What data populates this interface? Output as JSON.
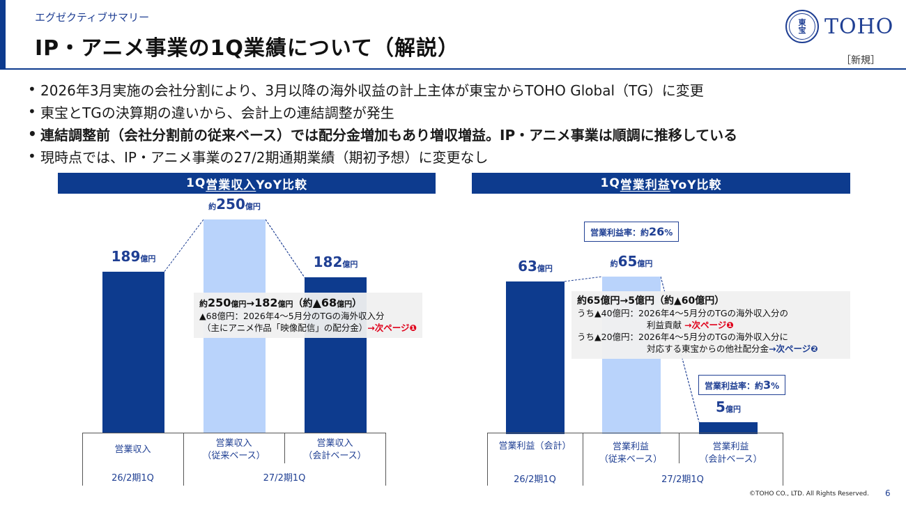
{
  "header": {
    "kicker": "エグゼクティブサマリー",
    "title": "IP・アニメ事業の1Q業績について（解説）",
    "logo_mark_top": "東",
    "logo_mark_bottom": "宝",
    "logo_text": "TOHO",
    "tag": "［新規］"
  },
  "bullets": [
    {
      "text": "2026年3月実施の会社分割により、3月以降の海外収益の計上主体が東宝からTOHO Global（TG）に変更",
      "bold": false
    },
    {
      "text": "東宝とTGの決算期の違いから、会計上の連結調整が発生",
      "bold": false
    },
    {
      "text": "連結調整前（会社分割前の従来ベース）では配分金増加もあり増収増益。IP・アニメ事業は順調に推移している",
      "bold": true
    },
    {
      "text": "現時点では、IP・アニメ事業の27/2期通期業績（期初予想）に変更なし",
      "bold": false
    }
  ],
  "colors": {
    "navy": "#0d3b8e",
    "light": "#b9d3fb",
    "red": "#e0001a"
  },
  "chart_data": [
    {
      "type": "bar",
      "title_pre": "1Q",
      "title_underlined": "営業収入",
      "title_post": "YoY比較",
      "categories": [
        "営業収入",
        "営業収入（従来ベース）",
        "営業収入（会計ベース）"
      ],
      "category_lines": [
        [
          "営業収入"
        ],
        [
          "営業収入",
          "（従来ベース）"
        ],
        [
          "営業収入",
          "（会計ベース）"
        ]
      ],
      "periods": [
        "26/2期1Q",
        "27/2期1Q"
      ],
      "values": [
        189,
        250,
        182
      ],
      "value_prefix": [
        "",
        "約",
        ""
      ],
      "unit": "億円",
      "ylim": [
        0,
        250
      ],
      "bar_colors": [
        "#0d3b8e",
        "#b9d3fb",
        "#0d3b8e"
      ],
      "note": {
        "head_prefix1": "約",
        "head_v1": "250",
        "head_u1": "億円",
        "head_arrow": "→",
        "head_v2": "182",
        "head_u2": "億円",
        "head_paren_open": "（約",
        "head_v3": "▲68",
        "head_u3": "億円",
        "head_paren_close": "）",
        "line1": "▲68億円：2026年4～5月分のTGの海外収入分",
        "line2": "（主にアニメ作品「映像配信」の配分金）",
        "link": "→次ページ❶"
      }
    },
    {
      "type": "bar",
      "title_pre": "1Q",
      "title_underlined": "営業利益",
      "title_post": "YoY比較",
      "categories": [
        "営業利益（会計）",
        "営業利益（従来ベース）",
        "営業利益（会計ベース）"
      ],
      "category_lines": [
        [
          "営業利益（会計）"
        ],
        [
          "営業利益",
          "（従来ベース）"
        ],
        [
          "営業利益",
          "（会計ベース）"
        ]
      ],
      "periods": [
        "26/2期1Q",
        "27/2期1Q"
      ],
      "values": [
        63,
        65,
        5
      ],
      "value_prefix": [
        "",
        "約",
        ""
      ],
      "unit": "億円",
      "ylim": [
        0,
        65
      ],
      "bar_colors": [
        "#0d3b8e",
        "#b9d3fb",
        "#0d3b8e"
      ],
      "rate_boxes": [
        {
          "label": "営業利益率：約",
          "num": "26",
          "pct": "%"
        },
        {
          "label": "営業利益率：約",
          "num": "3",
          "pct": "%"
        }
      ],
      "note": {
        "head": "約65億円→5億円（約▲60億円）",
        "line1": "うち▲40億円：2026年4～5月分のTGの海外収入分の",
        "line2_a": "利益貢献 ",
        "line2_link": "→次ページ❶",
        "line3": "うち▲20億円：2026年4～5月分のTGの海外収入分に",
        "line4_a": "対応する東宝からの他社配分金",
        "line4_link": "→次ページ❷"
      }
    }
  ],
  "footer": {
    "copyright": "©TOHO CO., LTD. All Rights Reserved.",
    "page": "6"
  }
}
